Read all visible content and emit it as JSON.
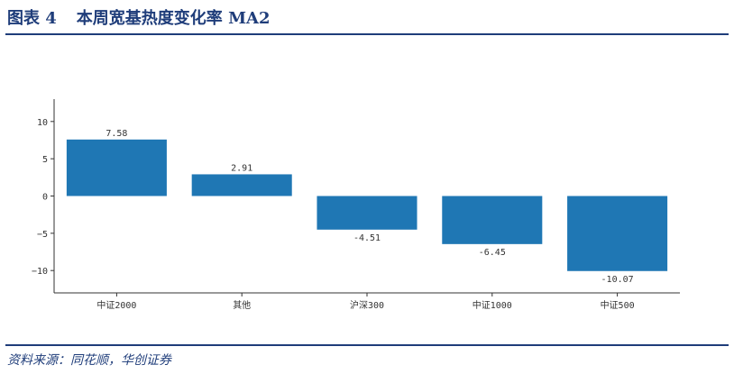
{
  "header": {
    "figure_label": "图表 4",
    "title": "本周宽基热度变化率 MA2"
  },
  "source": "资料来源：同花顺，华创证券",
  "colors": {
    "bar": "#1f77b4",
    "rule": "#1f3d7a",
    "title": "#1f3d7a"
  },
  "chart_data": {
    "type": "bar",
    "title": "",
    "xlabel": "",
    "ylabel": "",
    "categories": [
      "中证2000",
      "其他",
      "沪深300",
      "中证1000",
      "中证500"
    ],
    "values": [
      7.58,
      2.91,
      -4.51,
      -6.45,
      -10.07
    ],
    "data_labels": [
      "7.58",
      "2.91",
      "-4.51",
      "-6.45",
      "-10.07"
    ],
    "ylim": [
      -13,
      13
    ],
    "yticks": [
      10,
      5,
      0,
      -5,
      -10
    ],
    "ytick_labels": [
      "10",
      "5",
      "0",
      "−5",
      "−10"
    ],
    "grid": false,
    "legend": "none"
  }
}
